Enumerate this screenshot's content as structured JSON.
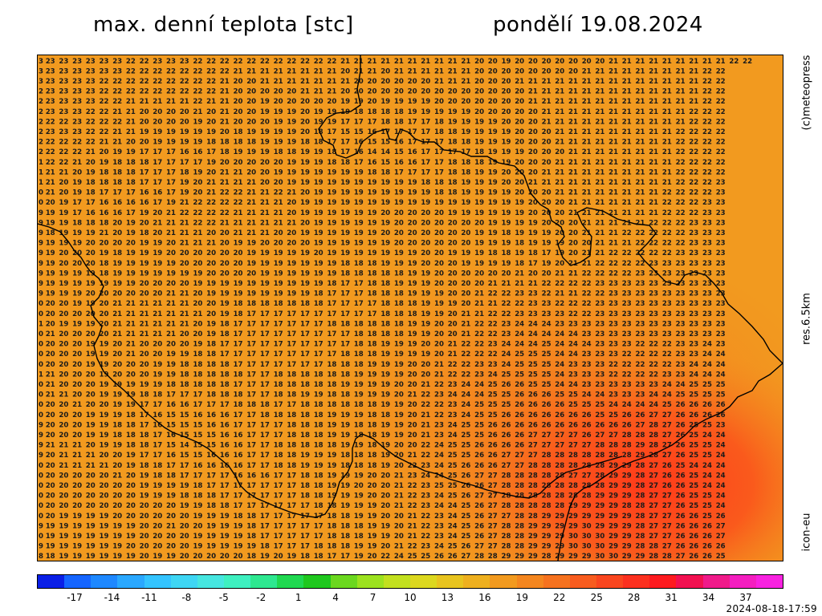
{
  "header": {
    "title_left": "max. denní teplota [stc]",
    "title_right": "pondělí 19.08.2024"
  },
  "side_labels": {
    "top": "(c)meteopress",
    "middle": "res.6.5km",
    "bottom": "icon-eu"
  },
  "footer": {
    "timestamp": "2024-08-18-17:59"
  },
  "legend": {
    "ticks": [
      "-17",
      "-14",
      "-11",
      "-8",
      "-5",
      "-2",
      "1",
      "4",
      "7",
      "10",
      "13",
      "16",
      "19",
      "22",
      "25",
      "28",
      "31",
      "34",
      "37"
    ],
    "colors": [
      "#0a1fe6",
      "#1565ff",
      "#1e88ff",
      "#2aa8ff",
      "#34c4ff",
      "#3ed6f4",
      "#46e6e0",
      "#3ef0c0",
      "#2ee890",
      "#20d850",
      "#1fc81e",
      "#6bd81f",
      "#9ce21f",
      "#c2e01f",
      "#dcd81f",
      "#e8c41f",
      "#eeb01f",
      "#f29a1f",
      "#f4861f",
      "#f6721f",
      "#f85c1f",
      "#fa461f",
      "#fc301f",
      "#fe1a1f",
      "#f21050",
      "#f01a8a",
      "#f41ec0",
      "#f822e0"
    ]
  },
  "map": {
    "grid_values": [
      "3 23 23 23 23 23 23 22 22 23 23 23 22 22 22 22 22 22 22 22 22 22 22 21 21 21 21 21 21 21 21 21 21 20 20 19 20 20 20 20 20 20 20 21 21 21 21 21 21 21 21 21 22 22",
      "3 23 23 23 23 23 23 22 22 22 22 22 22 22 22 21 21 21 21 21 21 21 21 20 21 21 20 21 21 21 21 21 21 20 20 20 20 20 20 20 20 21 21 21 21 21 21 21 21 21 22 22",
      "3 23 23 23 23 22 22 22 22 22 22 22 22 22 21 20 20 21 21 21 21 21 21 21 20 20 20 20 20 20 21 21 21 20 20 20 21 21 21 21 21 21 21 21 21 21 21 21 21 21 22 22",
      "2 23 23 23 23 22 22 22 22 22 22 22 22 22 21 20 20 20 20 20 21 21 21 20 20 20 20 20 20 20 20 20 20 20 20 20 20 21 21 21 21 21 21 21 21 21 21 21 21 21 22 22",
      "2 23 23 23 23 22 22 21 21 21 21 21 22 21 21 20 20 19 20 20 20 20 20 19 19 20 19 19 19 19 20 20 20 20 20 20 20 21 21 21 21 21 21 21 21 21 21 21 21 21 22 22",
      "2 23 23 23 22 22 21 21 20 20 20 20 21 20 21 20 20 19 19 19 20 19 19 19 18 18 18 18 19 19 19 19 19 20 20 20 20 20 21 21 21 21 21 21 21 21 21 21 21 22 22 22",
      "2 22 22 23 22 22 22 21 20 20 20 20 19 20 21 20 20 20 19 19 20 19 19 17 17 17 18 18 17 17 18 19 19 19 19 20 20 20 21 21 21 21 21 21 21 21 21 21 21 22 22 22",
      "2 23 23 23 22 22 21 21 19 19 19 19 19 19 20 18 19 19 19 19 20 18 17 15 15 16 17 17 17 17 18 18 19 19 19 19 20 20 20 21 21 21 21 21 21 21 21 21 22 22 22 22",
      "2 22 22 22 22 21 21 20 20 19 19 19 19 18 18 18 18 19 19 19 18 18 17 17 16 15 15 16 17 17 17 18 18 19 19 19 20 20 20 21 21 21 21 21 21 21 21 21 22 22 22 22",
      "2 22 22 22 21 20 19 19 17 17 17 16 16 17 18 19 19 19 18 18 19 19 18 17 16 14 14 15 16 17 17 17 17 18 19 19 19 20 20 20 21 21 21 21 21 21 21 21 22 22 22 22",
      "1 22 22 21 20 19 18 18 18 17 17 17 17 19 20 20 20 20 20 19 19 19 18 18 17 16 15 16 16 17 17 18 18 18 19 19 20 20 20 21 21 21 21 21 21 21 21 21 22 22 22 22",
      "1 21 21 20 19 18 18 18 17 17 17 18 19 20 21 21 20 20 19 19 19 19 19 19 19 18 18 17 17 17 17 18 18 19 19 20 20 20 21 21 21 21 21 21 21 21 21 21 22 22 22 22",
      "1 21 20 19 18 18 18 18 17 17 17 19 20 21 21 21 21 20 20 19 19 19 19 19 19 19 19 19 19 18 18 18 19 19 19 20 20 21 21 21 21 21 21 21 21 21 21 21 22 22 22 23",
      "0 21 20 19 18 17 17 17 16 16 17 19 20 21 22 22 21 21 22 21 20 19 19 19 19 19 19 19 19 19 18 18 19 19 19 19 20 20 20 21 21 21 21 21 21 21 21 22 22 22 22 23",
      "0 20 19 17 17 16 16 16 16 17 19 21 22 22 22 22 21 21 21 20 19 19 19 19 19 19 19 19 19 19 19 19 19 19 19 19 19 20 20 20 21 21 21 21 21 21 21 22 22 22 23 23",
      "9 19 19 17 16 16 16 17 19 20 21 22 22 22 22 21 21 21 21 20 19 19 19 19 19 19 20 20 20 20 20 19 19 19 19 19 19 20 20 20 21 21 21 21 21 21 21 22 22 22 23 23",
      "9 19 19 18 18 18 20 19 20 21 21 21 22 22 21 21 21 21 21 21 20 19 19 19 19 19 19 20 20 20 20 20 20 20 19 19 19 19 20 20 20 21 21 21 21 21 22 22 22 23 23 23",
      "9 18 19 19 19 21 20 19 18 20 21 21 21 20 20 21 21 21 20 20 19 19 19 19 19 19 20 20 20 20 20 20 20 19 19 18 19 19 19 20 20 21 21 21 22 22 22 22 22 23 23 23",
      "9 19 19 19 20 20 20 20 19 19 20 21 21 21 20 19 19 20 20 20 20 19 19 19 19 19 19 20 20 20 20 20 20 19 19 19 18 19 19 19 20 20 21 21 21 22 22 22 22 23 23 23",
      "9 19 20 20 20 19 18 19 19 19 20 20 20 20 20 20 19 19 19 19 19 20 19 19 19 19 19 19 19 20 20 19 19 19 18 18 19 18 17 19 20 21 21 22 22 22 22 22 23 23 23 23",
      "9 19 20 20 20 18 19 19 19 19 19 20 20 20 20 20 19 19 19 19 19 19 19 18 18 18 19 19 19 20 20 20 19 19 19 19 18 17 19 20 21 21 22 22 22 22 23 23 23 23 23 23",
      "9 19 19 19 19 18 19 19 19 19 19 19 19 20 20 20 20 19 19 19 19 19 19 18 18 18 18 18 19 19 20 20 20 20 20 20 21 20 20 21 21 22 22 22 22 23 23 23 23 23 23 23",
      "9 19 19 19 19 19 19 19 20 20 20 20 19 19 19 19 19 19 19 19 19 19 18 17 17 18 18 19 19 19 20 20 20 20 21 21 21 21 22 22 22 22 23 23 23 23 23 23 23 23 23 23",
      "9 19 19 19 20 20 20 20 20 20 21 21 20 19 19 19 19 19 19 19 19 18 17 17 17 18 18 18 19 19 19 20 20 21 22 22 23 23 22 21 21 22 22 23 23 23 23 23 23 23 23 23",
      "0 20 20 19 19 20 21 21 21 21 21 21 20 20 19 18 18 18 18 18 18 18 17 17 17 17 18 18 18 19 19 19 20 21 21 22 22 23 23 22 22 22 23 23 23 23 23 23 23 23 23 23",
      "0 20 20 20 20 20 21 21 21 21 21 21 21 20 19 18 17 17 17 17 17 17 17 17 17 17 18 18 18 19 19 20 21 21 22 22 23 23 23 23 22 22 23 23 23 23 23 23 23 23 23 23",
      "1 20 19 19 19 20 21 21 21 21 21 21 20 19 18 17 17 17 17 17 17 17 18 18 18 18 18 18 19 19 20 20 21 22 22 23 24 24 24 23 23 23 23 23 23 23 23 23 23 23 23 23",
      "0 21 20 20 20 20 21 21 21 21 21 20 20 19 18 17 17 17 17 17 17 17 17 17 18 18 18 18 19 19 20 20 21 22 22 23 24 24 24 24 24 23 23 23 23 23 23 23 23 23 23 23",
      "0 20 20 20 19 19 20 21 20 20 20 20 19 18 17 17 17 17 17 17 17 17 17 17 18 18 19 19 19 20 20 21 22 22 23 24 24 24 25 24 24 24 23 23 23 22 22 22 23 23 24 23",
      "0 20 20 20 19 19 20 21 20 20 19 19 18 18 17 17 17 17 17 17 17 17 17 18 18 18 19 19 19 19 20 21 22 22 22 24 25 25 25 24 24 23 23 23 22 22 22 22 23 23 24 24",
      "0 20 20 20 19 19 20 20 20 19 19 18 18 18 18 17 17 17 17 17 17 17 18 18 18 19 19 19 20 20 21 22 22 23 23 24 25 25 25 24 23 23 23 22 22 22 22 22 23 24 24 24",
      "1 21 20 20 20 19 20 20 20 19 19 18 18 18 18 18 17 17 18 18 18 18 18 18 19 19 19 19 20 20 21 22 22 23 24 25 25 25 25 24 23 23 23 22 22 22 22 23 23 24 24 24",
      "0 21 20 20 20 19 19 19 19 19 18 18 18 18 18 17 17 17 18 18 18 18 18 19 19 19 19 20 20 21 22 23 24 24 25 26 26 25 25 24 24 23 23 23 23 23 23 24 24 25 25 25",
      "0 21 21 20 20 19 19 19 18 18 17 17 17 18 18 18 17 17 18 18 19 19 18 18 19 19 19 20 21 22 23 24 24 24 25 25 26 26 26 25 25 24 24 23 23 23 24 24 25 25 25 25",
      "0 20 20 21 20 20 19 19 17 17 16 16 17 17 17 18 18 18 17 17 18 18 18 18 18 18 19 19 20 22 22 23 24 25 25 25 26 26 26 26 25 25 25 24 24 24 24 25 26 26 26 26",
      "0 20 20 20 19 19 19 18 17 16 15 15 16 16 16 17 17 18 18 18 18 18 19 19 19 18 18 19 20 21 22 23 24 25 25 26 26 26 26 26 26 26 25 25 26 26 27 27 26 26 26 26",
      "9 20 20 20 19 19 18 18 17 16 15 15 15 16 16 17 17 17 17 18 18 18 19 19 18 18 19 19 20 21 23 24 25 25 26 26 26 26 26 26 26 26 26 26 26 27 28 27 26 25 25 23",
      "9 20 20 20 19 19 18 18 18 17 16 15 15 15 16 16 17 17 17 18 18 18 19 19 18 18 19 19 20 21 23 24 25 25 26 26 26 27 27 27 27 26 27 27 28 28 28 27 26 25 24 24",
      "9 21 21 21 20 19 19 18 18 17 15 14 15 15 16 16 17 17 18 18 18 18 18 19 19 18 19 20 20 22 24 25 25 26 26 26 26 27 27 27 27 27 28 28 28 29 28 27 26 25 25 24",
      "9 20 21 21 21 20 20 19 17 17 16 15 15 16 16 16 17 17 18 18 19 19 19 18 18 18 19 20 21 22 24 25 25 26 26 27 27 27 28 28 28 28 28 28 28 29 28 27 26 25 25 24",
      "0 20 21 21 21 21 20 19 18 18 17 17 16 16 16 16 17 17 18 18 19 19 19 18 18 18 19 20 22 23 24 25 26 26 26 27 27 28 28 28 28 28 28 29 29 28 27 26 25 24 24 24",
      "0 20 20 20 20 20 21 20 19 18 18 17 17 17 17 16 16 16 17 17 18 18 19 19 19 20 20 21 23 24 24 25 26 27 27 28 28 28 28 28 27 27 28 29 29 28 27 26 26 25 24 24",
      "0 20 20 20 20 20 20 20 19 19 19 19 18 17 17 17 17 17 17 17 18 18 19 19 20 20 20 21 22 23 25 25 26 26 27 28 28 28 28 28 28 28 28 29 29 28 27 26 26 25 24 24",
      "0 20 20 20 20 20 20 20 19 19 19 18 18 18 17 17 17 17 17 17 18 18 19 19 19 20 20 21 22 23 24 25 26 27 27 28 28 28 28 28 28 28 29 29 29 28 27 27 26 25 25 24",
      "0 20 20 20 20 20 20 20 20 20 20 19 19 18 18 17 17 17 17 17 17 18 18 19 19 19 20 21 22 23 24 24 25 26 27 28 28 28 28 28 29 29 29 29 28 28 27 27 26 25 25 24",
      "0 20 19 19 19 19 20 20 20 20 20 20 19 19 19 18 18 17 17 17 17 17 18 18 19 19 20 20 21 22 23 24 25 26 27 27 28 28 29 29 29 29 29 29 29 28 27 27 26 26 25 26",
      "9 19 19 19 19 19 19 19 20 20 21 20 20 19 19 19 18 17 17 17 17 17 18 18 18 19 19 20 21 22 23 24 25 26 27 28 28 29 29 29 29 30 29 29 29 28 27 27 26 26 26 27",
      "0 19 19 19 19 19 19 19 20 20 20 20 19 19 19 19 18 17 17 17 17 17 18 18 18 19 19 20 21 22 23 24 25 26 27 28 28 29 29 29 30 30 30 29 29 28 27 27 26 26 26 27",
      "9 19 19 19 19 19 19 20 20 20 20 20 19 19 19 19 19 18 17 17 17 18 18 18 19 19 20 21 22 23 24 25 26 27 27 28 28 29 29 29 30 30 30 29 29 28 28 27 26 26 26 26",
      "8 18 19 19 19 19 19 19 20 19 19 20 20 20 20 20 18 19 20 19 18 18 17 17 19 20 22 24 25 25 26 26 27 28 28 29 29 29 28 29 29 29 30 30 29 29 28 28 27 26 26 25"
    ]
  }
}
